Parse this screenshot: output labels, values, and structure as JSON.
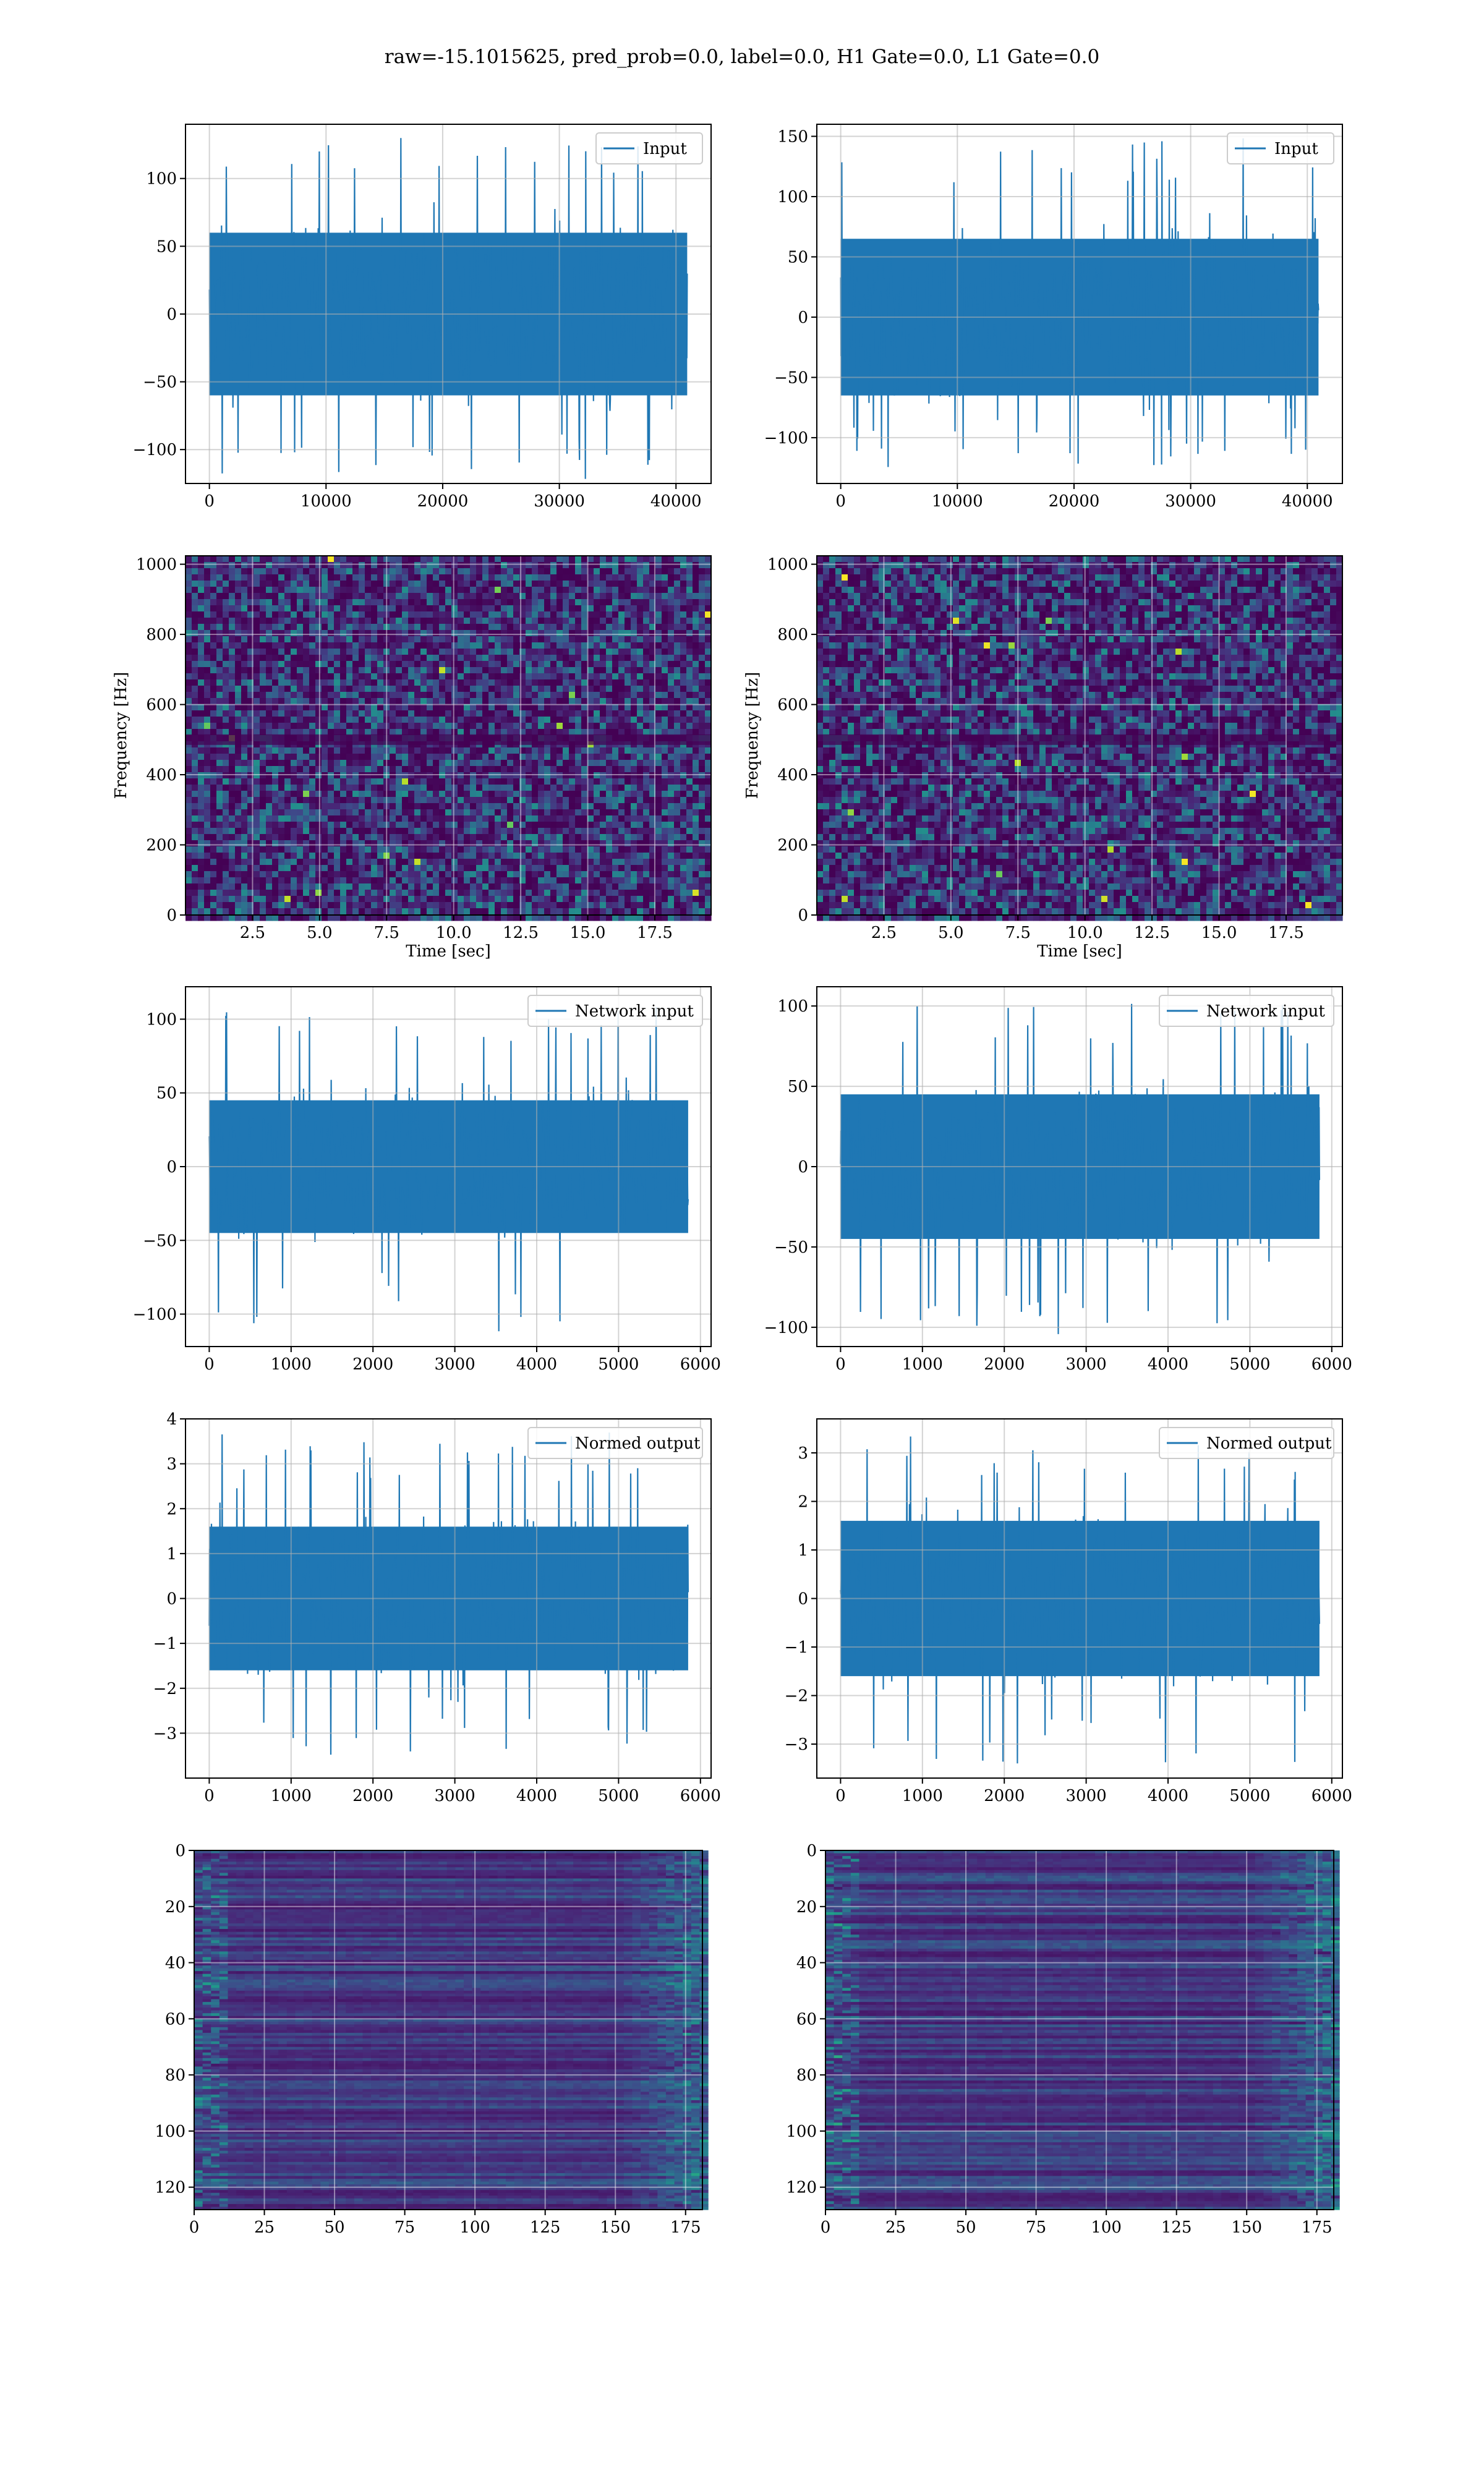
{
  "figure": {
    "title": "raw=-15.1015625, pred_prob=0.0, label=0.0, H1 Gate=0.0, L1 Gate=0.0"
  },
  "chart_data": [
    {
      "id": "input-left",
      "type": "line",
      "series": [
        {
          "name": "Input"
        }
      ],
      "x_range": [
        0,
        40960
      ],
      "xlim": [
        -2048,
        43008
      ],
      "ylim": [
        -125,
        140
      ],
      "xticks": [
        0,
        10000,
        20000,
        30000,
        40000
      ],
      "xtick_labels": [
        "0",
        "10000",
        "20000",
        "30000",
        "40000"
      ],
      "yticks": [
        -100,
        -50,
        0,
        50,
        100
      ],
      "ytick_labels": [
        "−100",
        "−50",
        "0",
        "50",
        "100"
      ],
      "amplitude": {
        "typical_band": [
          -60,
          60
        ],
        "min": -122,
        "max": 132
      },
      "grid": true,
      "legend": "top-right"
    },
    {
      "id": "input-right",
      "type": "line",
      "series": [
        {
          "name": "Input"
        }
      ],
      "x_range": [
        0,
        40960
      ],
      "xlim": [
        -2048,
        43008
      ],
      "ylim": [
        -138,
        160
      ],
      "xticks": [
        0,
        10000,
        20000,
        30000,
        40000
      ],
      "xtick_labels": [
        "0",
        "10000",
        "20000",
        "30000",
        "40000"
      ],
      "yticks": [
        -100,
        -50,
        0,
        50,
        100,
        150
      ],
      "ytick_labels": [
        "−100",
        "−50",
        "0",
        "50",
        "100",
        "150"
      ],
      "amplitude": {
        "typical_band": [
          -65,
          65
        ],
        "min": -125,
        "max": 152
      },
      "grid": true,
      "legend": "top-right"
    },
    {
      "id": "spectrogram-left",
      "type": "heatmap",
      "colormap": "viridis",
      "xlim": [
        0,
        19.6
      ],
      "ylim": [
        0,
        1024
      ],
      "xticks": [
        2.5,
        5.0,
        7.5,
        10.0,
        12.5,
        15.0,
        17.5
      ],
      "xtick_labels": [
        "2.5",
        "5.0",
        "7.5",
        "10.0",
        "12.5",
        "15.0",
        "17.5"
      ],
      "yticks": [
        0,
        200,
        400,
        600,
        800,
        1000
      ],
      "ytick_labels": [
        "0",
        "200",
        "400",
        "600",
        "800",
        "1000"
      ],
      "xlabel": "Time [sec]",
      "ylabel": "Frequency [Hz]",
      "grid": true
    },
    {
      "id": "spectrogram-right",
      "type": "heatmap",
      "colormap": "viridis",
      "xlim": [
        0,
        19.6
      ],
      "ylim": [
        0,
        1024
      ],
      "xticks": [
        2.5,
        5.0,
        7.5,
        10.0,
        12.5,
        15.0,
        17.5
      ],
      "xtick_labels": [
        "2.5",
        "5.0",
        "7.5",
        "10.0",
        "12.5",
        "15.0",
        "17.5"
      ],
      "yticks": [
        0,
        200,
        400,
        600,
        800,
        1000
      ],
      "ytick_labels": [
        "0",
        "200",
        "400",
        "600",
        "800",
        "1000"
      ],
      "xlabel": "Time [sec]",
      "ylabel": "Frequency [Hz]",
      "grid": true
    },
    {
      "id": "network-input-left",
      "type": "line",
      "series": [
        {
          "name": "Network input"
        }
      ],
      "x_range": [
        0,
        5850
      ],
      "xlim": [
        -290,
        6130
      ],
      "ylim": [
        -122,
        122
      ],
      "xticks": [
        0,
        1000,
        2000,
        3000,
        4000,
        5000,
        6000
      ],
      "xtick_labels": [
        "0",
        "1000",
        "2000",
        "3000",
        "4000",
        "5000",
        "6000"
      ],
      "yticks": [
        -100,
        -50,
        0,
        50,
        100
      ],
      "ytick_labels": [
        "−100",
        "−50",
        "0",
        "50",
        "100"
      ],
      "amplitude": {
        "typical_band": [
          -45,
          45
        ],
        "min": -112,
        "max": 115
      },
      "grid": true,
      "legend": "top-right"
    },
    {
      "id": "network-input-right",
      "type": "line",
      "series": [
        {
          "name": "Network input"
        }
      ],
      "x_range": [
        0,
        5850
      ],
      "xlim": [
        -290,
        6130
      ],
      "ylim": [
        -112,
        112
      ],
      "xticks": [
        0,
        1000,
        2000,
        3000,
        4000,
        5000,
        6000
      ],
      "xtick_labels": [
        "0",
        "1000",
        "2000",
        "3000",
        "4000",
        "5000",
        "6000"
      ],
      "yticks": [
        -100,
        -50,
        0,
        50,
        100
      ],
      "ytick_labels": [
        "−100",
        "−50",
        "0",
        "50",
        "100"
      ],
      "amplitude": {
        "typical_band": [
          -45,
          45
        ],
        "min": -106,
        "max": 102
      },
      "grid": true,
      "legend": "top-right"
    },
    {
      "id": "normed-output-left",
      "type": "line",
      "series": [
        {
          "name": "Normed output"
        }
      ],
      "x_range": [
        0,
        5850
      ],
      "xlim": [
        -290,
        6130
      ],
      "ylim": [
        -4.0,
        4.0
      ],
      "xticks": [
        0,
        1000,
        2000,
        3000,
        4000,
        5000,
        6000
      ],
      "xtick_labels": [
        "0",
        "1000",
        "2000",
        "3000",
        "4000",
        "5000",
        "6000"
      ],
      "yticks": [
        -3,
        -2,
        -1,
        0,
        1,
        2,
        3,
        4
      ],
      "ytick_labels": [
        "−3",
        "−2",
        "−1",
        "0",
        "1",
        "2",
        "3",
        "4"
      ],
      "amplitude": {
        "typical_band": [
          -1.6,
          1.6
        ],
        "min": -3.6,
        "max": 3.7
      },
      "grid": true,
      "legend": "top-right"
    },
    {
      "id": "normed-output-right",
      "type": "line",
      "series": [
        {
          "name": "Normed output"
        }
      ],
      "x_range": [
        0,
        5850
      ],
      "xlim": [
        -290,
        6130
      ],
      "ylim": [
        -3.7,
        3.7
      ],
      "xticks": [
        0,
        1000,
        2000,
        3000,
        4000,
        5000,
        6000
      ],
      "xtick_labels": [
        "0",
        "1000",
        "2000",
        "3000",
        "4000",
        "5000",
        "6000"
      ],
      "yticks": [
        -3,
        -2,
        -1,
        0,
        1,
        2,
        3
      ],
      "ytick_labels": [
        "−3",
        "−2",
        "−1",
        "0",
        "1",
        "2",
        "3"
      ],
      "amplitude": {
        "typical_band": [
          -1.6,
          1.6
        ],
        "min": -3.4,
        "max": 3.4
      },
      "grid": true,
      "legend": "top-right"
    },
    {
      "id": "features-left",
      "type": "heatmap",
      "colormap": "viridis",
      "xlim": [
        0,
        181
      ],
      "ylim": [
        128,
        0
      ],
      "rows": 128,
      "cols": 181,
      "xticks": [
        0,
        25,
        50,
        75,
        100,
        125,
        150,
        175
      ],
      "xtick_labels": [
        "0",
        "25",
        "50",
        "75",
        "100",
        "125",
        "150",
        "175"
      ],
      "yticks": [
        0,
        20,
        40,
        60,
        80,
        100,
        120
      ],
      "ytick_labels": [
        "0",
        "20",
        "40",
        "60",
        "80",
        "100",
        "120"
      ],
      "grid": true
    },
    {
      "id": "features-right",
      "type": "heatmap",
      "colormap": "viridis",
      "xlim": [
        0,
        181
      ],
      "ylim": [
        128,
        0
      ],
      "rows": 128,
      "cols": 181,
      "xticks": [
        0,
        25,
        50,
        75,
        100,
        125,
        150,
        175
      ],
      "xtick_labels": [
        "0",
        "25",
        "50",
        "75",
        "100",
        "125",
        "150",
        "175"
      ],
      "yticks": [
        0,
        20,
        40,
        60,
        80,
        100,
        120
      ],
      "ytick_labels": [
        "0",
        "20",
        "40",
        "60",
        "80",
        "100",
        "120"
      ],
      "grid": true
    }
  ]
}
